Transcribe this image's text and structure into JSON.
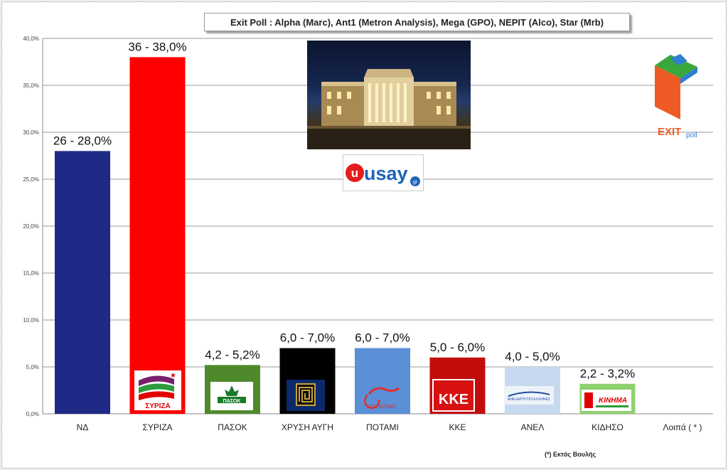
{
  "chart_data": {
    "type": "bar",
    "title": "Exit Poll : Alpha (Marc), Ant1 (Metron Analysis), Mega (GPO), NEPIT (Alco), Star (Mrb)",
    "categories": [
      "ΝΔ",
      "ΣΥΡΙΖΑ",
      "ΠΑΣΟΚ",
      "ΧΡΥΣΗ ΑΥΓΗ",
      "ΠΟΤΑΜΙ",
      "ΚΚΕ",
      "ΑΝΕΛ",
      "ΚΙΔΗΣΟ",
      "Λοιπά  ( * )"
    ],
    "values": [
      28.0,
      38.0,
      5.2,
      7.0,
      7.0,
      6.0,
      5.0,
      3.2,
      null
    ],
    "data_labels": [
      "26 - 28,0%",
      "36 - 38,0%",
      "4,2 - 5,2%",
      "6,0 - 7,0%",
      "6,0 - 7,0%",
      "5,0 - 6,0%",
      "4,0 - 5,0%",
      "2,2 - 3,2%",
      ""
    ],
    "colors": [
      "#1f2a86",
      "#fe0000",
      "#4e8a2c",
      "#000000",
      "#5b8fd6",
      "#c30d0d",
      "#c6d9ef",
      "#8ed16f",
      "#ffffff"
    ],
    "y_ticks": [
      "0,0%",
      "5,0%",
      "10,0%",
      "15,0%",
      "20,0%",
      "25,0%",
      "30,0%",
      "35,0%",
      "40,0%"
    ],
    "ylim": [
      0,
      40
    ],
    "grid": true,
    "footnote": "(*) Εκτός Βουλής"
  },
  "logos": {
    "syriza": "ΣΥΡΙΖΑ",
    "pasok": "ΠΑΣΟΚ",
    "kke": "ΚΚΕ",
    "potami": "ΤΟ ΠΟΤΑΜΙ",
    "anel": "ΑΝΕΞΑΡΤΗΤΟΙ ΕΛΛΗΝΕΣ",
    "kinima": "ΚΙΝΗΜΑ"
  },
  "branding": {
    "usay_main": "usay",
    "usay_suffix": "gr",
    "exit_word": "EXIT",
    "poll_word": "poll"
  }
}
